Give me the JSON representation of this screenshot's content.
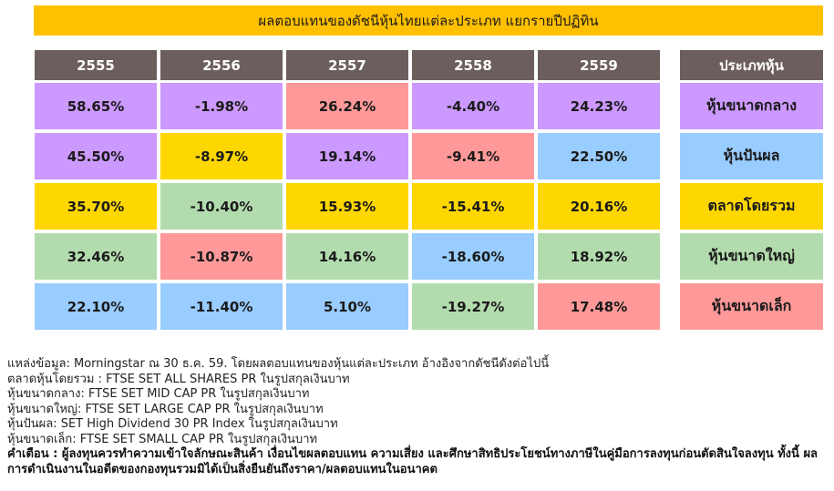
{
  "chart_data": {
    "type": "table",
    "title": "ผลตอบแทนของดัชนีหุ้นไทยแต่ละประเภท แยกรายปีปฏิทิน",
    "columns": [
      "2555",
      "2556",
      "2557",
      "2558",
      "2559"
    ],
    "category_header": "ประเภทหุ้น",
    "categories": [
      "หุ้นขนาดกลาง",
      "หุ้นปันผล",
      "ตลาดโดยรวม",
      "หุ้นขนาดใหญ่",
      "หุ้นขนาดเล็ก"
    ],
    "category_colors": [
      "#cc99ff",
      "#99ccff",
      "#ffd700",
      "#b3dcae",
      "#ff9999"
    ],
    "table_cells": [
      [
        {
          "value": "58.65%",
          "category": 0
        },
        {
          "value": "-1.98%",
          "category": 0
        },
        {
          "value": "26.24%",
          "category": 4
        },
        {
          "value": "-4.40%",
          "category": 0
        },
        {
          "value": "24.23%",
          "category": 0
        }
      ],
      [
        {
          "value": "45.50%",
          "category": 0
        },
        {
          "value": "-8.97%",
          "category": 2
        },
        {
          "value": "19.14%",
          "category": 0
        },
        {
          "value": "-9.41%",
          "category": 4
        },
        {
          "value": "22.50%",
          "category": 1
        }
      ],
      [
        {
          "value": "35.70%",
          "category": 2
        },
        {
          "value": "-10.40%",
          "category": 3
        },
        {
          "value": "15.93%",
          "category": 2
        },
        {
          "value": "-15.41%",
          "category": 2
        },
        {
          "value": "20.16%",
          "category": 2
        }
      ],
      [
        {
          "value": "32.46%",
          "category": 3
        },
        {
          "value": "-10.87%",
          "category": 4
        },
        {
          "value": "14.16%",
          "category": 3
        },
        {
          "value": "-18.60%",
          "category": 1
        },
        {
          "value": "18.92%",
          "category": 3
        }
      ],
      [
        {
          "value": "22.10%",
          "category": 1
        },
        {
          "value": "-11.40%",
          "category": 1
        },
        {
          "value": "5.10%",
          "category": 1
        },
        {
          "value": "-19.27%",
          "category": 3
        },
        {
          "value": "17.48%",
          "category": 4
        }
      ]
    ]
  },
  "colors": {
    "title_bg": "#ffc000",
    "header_bg": "#6d5e5e"
  },
  "notes": [
    "แหล่งข้อมูล: Morningstar ณ 30 ธ.ค. 59. โดยผลตอบแทนของหุ้นแต่ละประเภท อ้างอิงจากดัชนีดังต่อไปนี้",
    "ตลาดหุ้นโดยรวม : FTSE SET ALL SHARES PR ในรูปสกุลเงินบาท",
    "หุ้นขนาดกลาง: FTSE SET MID CAP PR ในรูปสกุลเงินบาท",
    "หุ้นขนาดใหญ่: FTSE SET LARGE CAP PR ในรูปสกุลเงินบาท",
    "หุ้นปันผล: SET High Dividend 30 PR Index ในรูปสกุลเงินบาท",
    "หุ้นขนาดเล็ก: FTSE SET SMALL CAP PR ในรูปสกุลเงินบาท"
  ],
  "warning": "คำเตือน : ผู้ลงทุนควรทำความเข้าใจลักษณะสินค้า เงื่อนไขผลตอบแทน ความเสี่ยง และศึกษาสิทธิประโยชน์ทางภาษีในคู่มือการลงทุนก่อนตัดสินใจลงทุน ทั้งนี้ ผลการดำเนินงานในอดีตของกองทุนรวมมิได้เป็นสิ่งยืนยันถึงราคา/ผลตอบแทนในอนาคต"
}
